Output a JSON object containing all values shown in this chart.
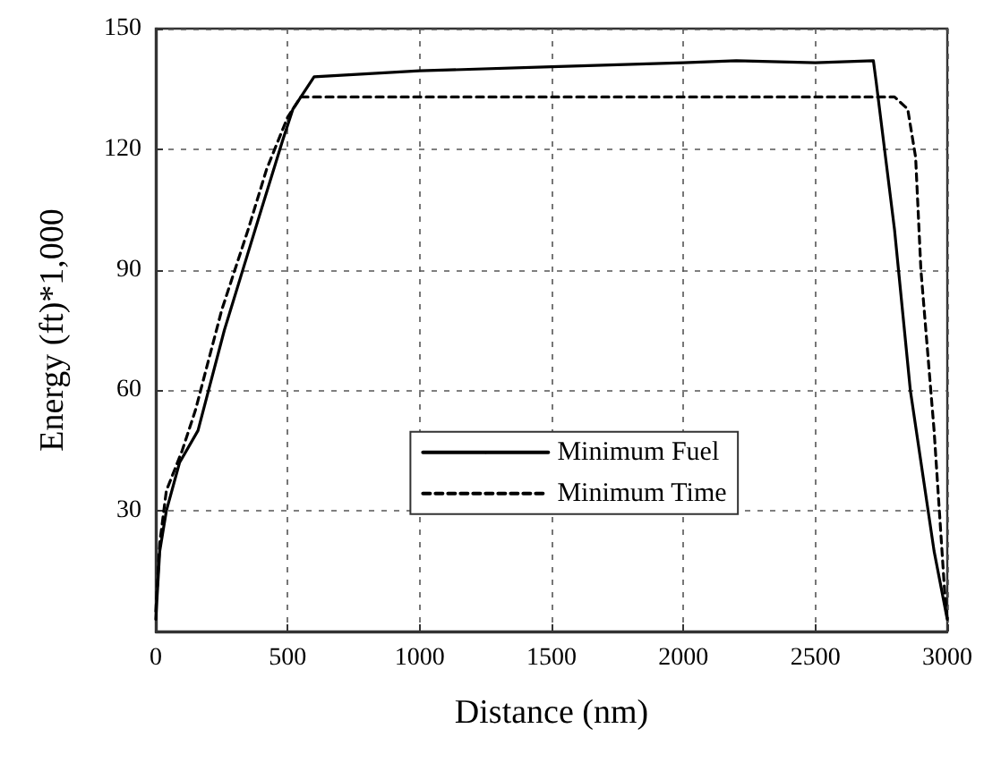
{
  "chart_data": {
    "type": "line",
    "xlabel": "Distance (nm)",
    "ylabel": "Energy (ft)*1,000",
    "xlim": [
      0,
      3000
    ],
    "xticks": [
      0,
      500,
      1000,
      1500,
      2000,
      2500,
      3000
    ],
    "ylim": [
      0,
      150
    ],
    "yticks": [
      {
        "value": 0,
        "label": null
      },
      30,
      60,
      90,
      120,
      150
    ],
    "grid": true,
    "legend": "center",
    "marker": "none",
    "series": [
      {
        "name": "Minimum Fuel",
        "color": "#000000",
        "line_style": "solid",
        "x": [
          0,
          15,
          40,
          90,
          160,
          200,
          260,
          330,
          400,
          480,
          520,
          600,
          1000,
          1500,
          2000,
          2200,
          2500,
          2720,
          2730,
          2800,
          2860,
          2950,
          3000
        ],
        "values": [
          3,
          20,
          30,
          42,
          50,
          60,
          75,
          90,
          105,
          122,
          130,
          138,
          139.5,
          140.5,
          141.5,
          142,
          141.5,
          142,
          137,
          100,
          60,
          20,
          3
        ]
      },
      {
        "name": "Minimum Time",
        "color": "#000000",
        "line_style": "dashed",
        "x": [
          0,
          15,
          40,
          100,
          150,
          250,
          350,
          420,
          500,
          550,
          2700,
          2800,
          2850,
          2880,
          2900,
          2950,
          2990,
          3000
        ],
        "values": [
          5,
          22,
          35,
          45,
          55,
          80,
          100,
          115,
          128,
          133,
          133,
          133,
          130,
          118,
          90,
          50,
          10,
          3
        ]
      }
    ]
  }
}
